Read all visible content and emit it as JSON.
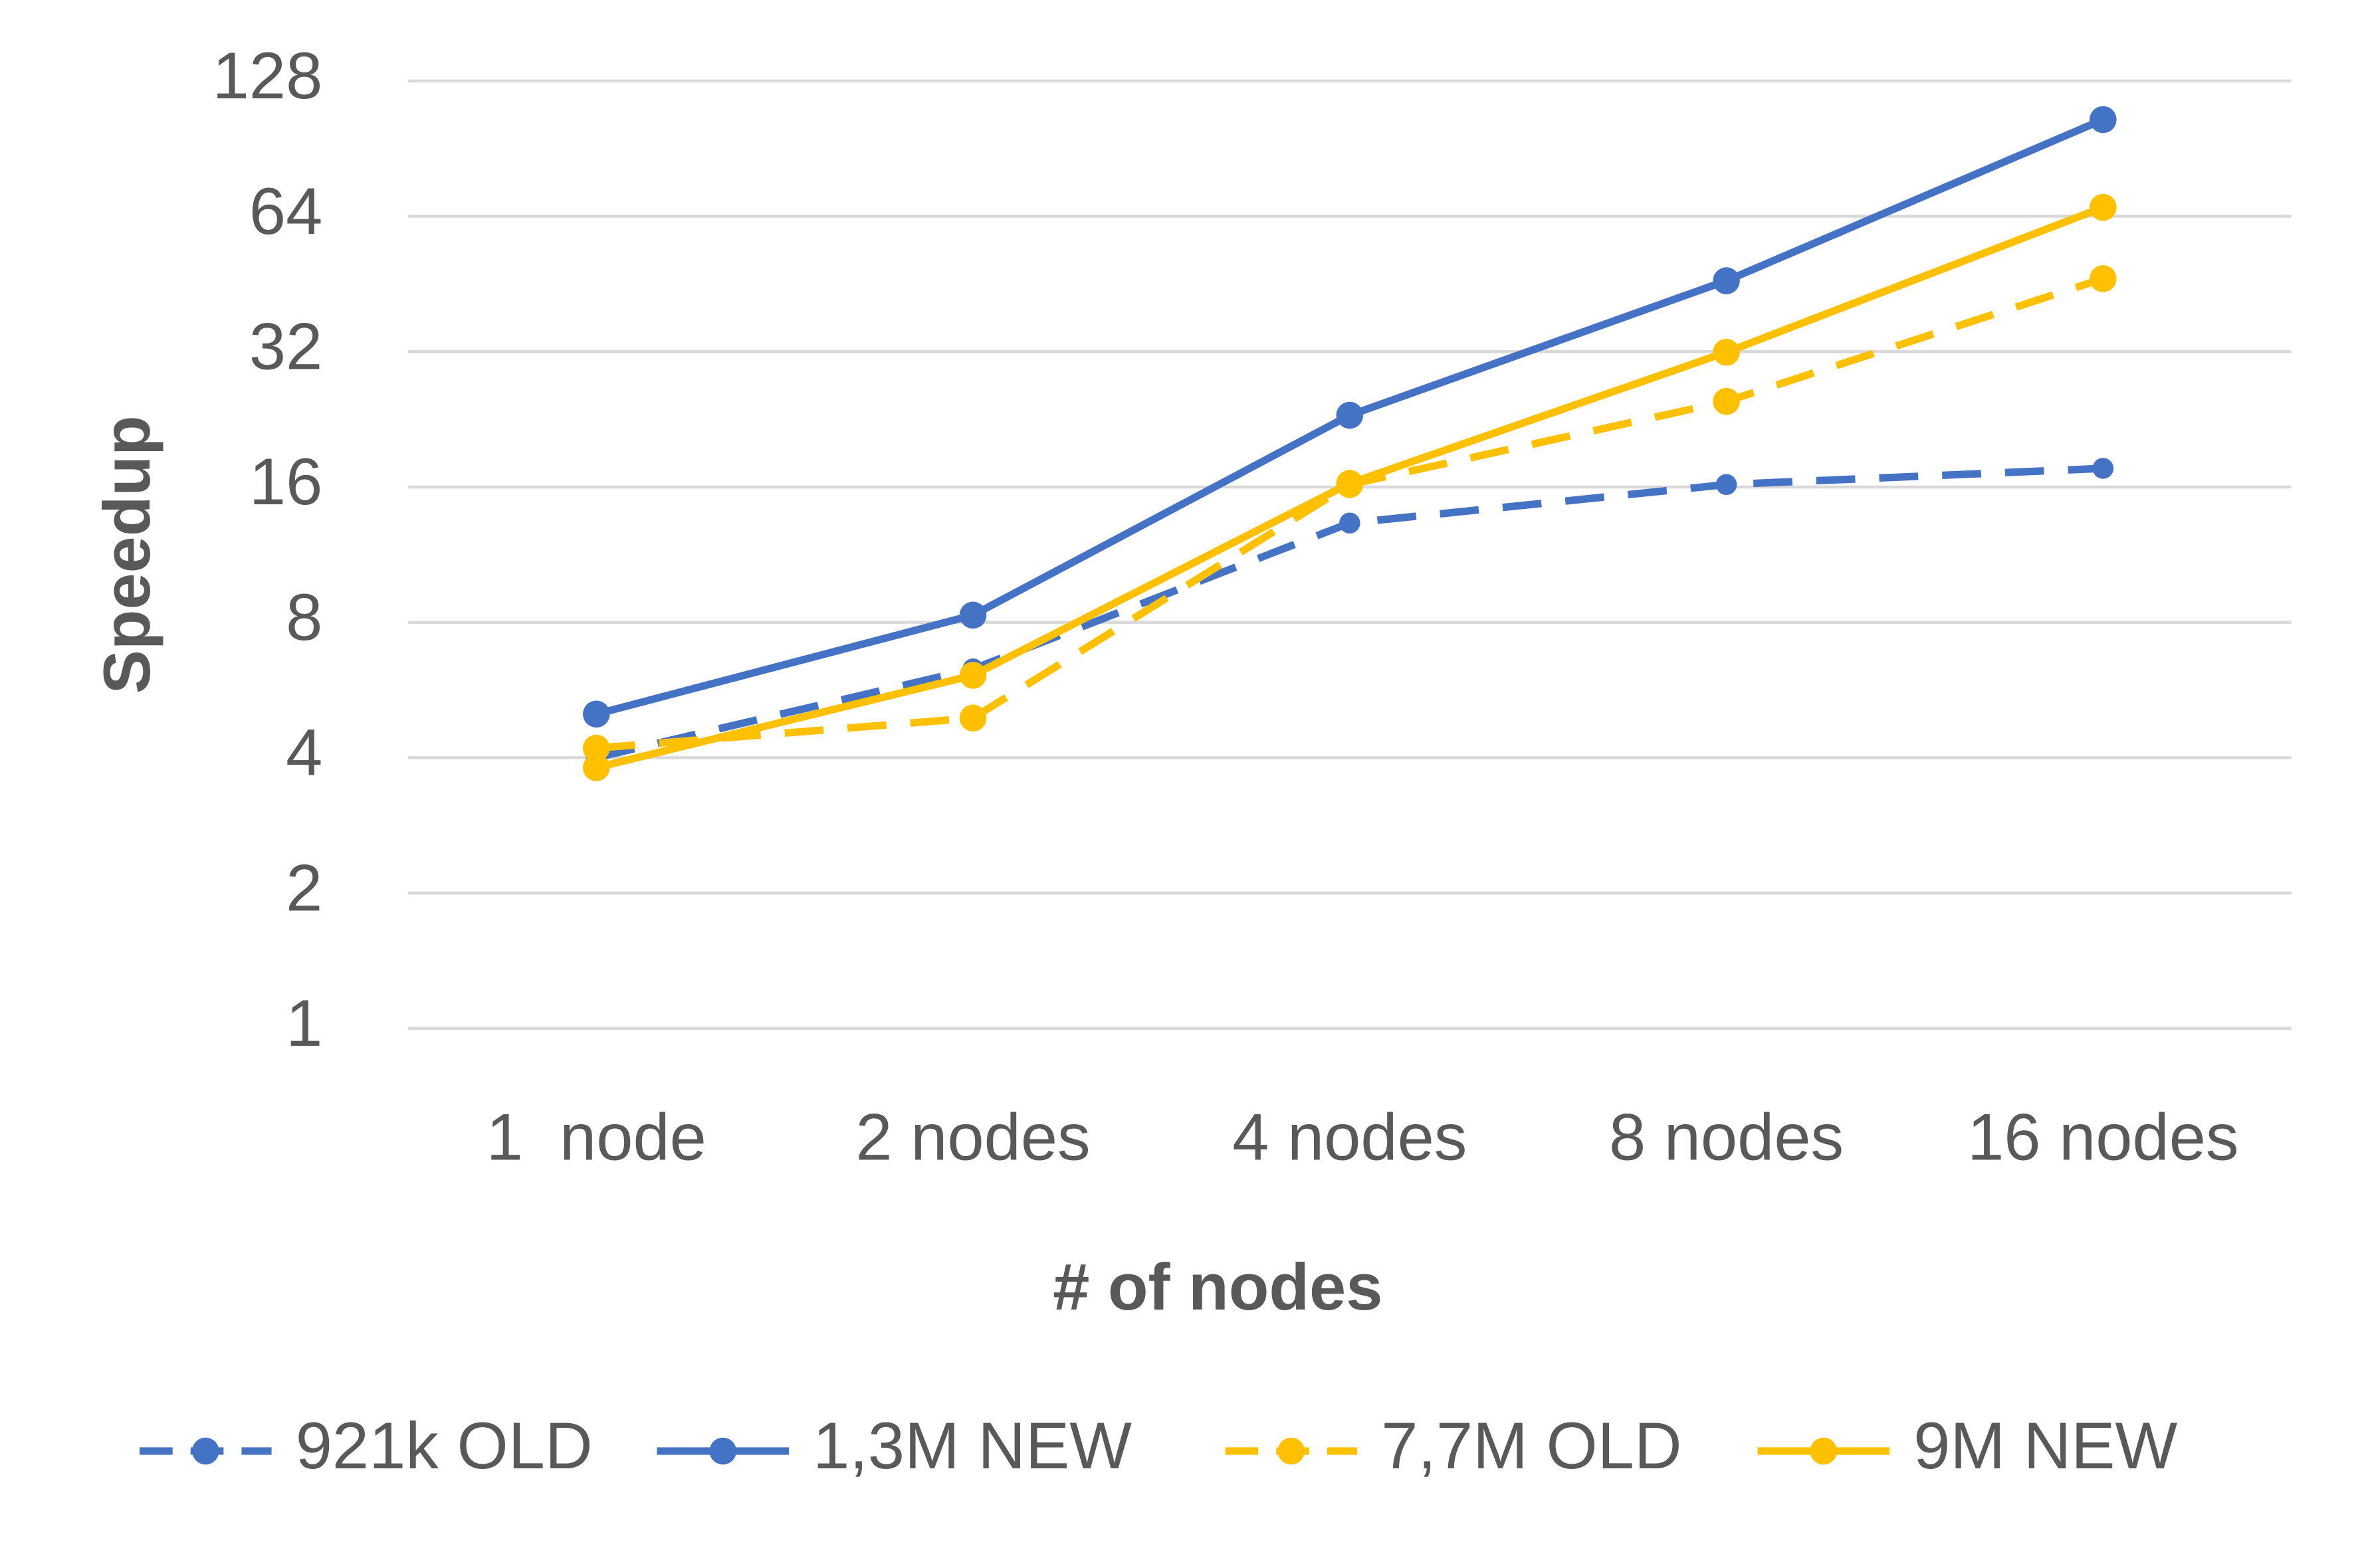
{
  "chart_data": {
    "type": "line",
    "y_label": "Speedup",
    "x_label": "# of nodes",
    "categories": [
      "1  node",
      "2 nodes",
      "4 nodes",
      "8 nodes",
      "16 nodes"
    ],
    "y_scale": "log2",
    "ylim": [
      1,
      128
    ],
    "yticks": [
      1,
      2,
      4,
      8,
      16,
      32,
      64,
      128
    ],
    "grid": true,
    "legend": "bottom",
    "series": [
      {
        "name": "921k OLD",
        "color": "#4472c4",
        "line_style": "dashed",
        "values": [
          4.0,
          6.3,
          13.3,
          16.2,
          17.6
        ]
      },
      {
        "name": "1,3M NEW",
        "color": "#4472c4",
        "line_style": "solid",
        "values": [
          5.0,
          8.3,
          23.1,
          46,
          105
        ]
      },
      {
        "name": "7,7M OLD",
        "color": "#ffc000",
        "line_style": "dashed",
        "values": [
          4.2,
          4.9,
          16.2,
          24.8,
          46.5
        ]
      },
      {
        "name": "9M NEW",
        "color": "#ffc000",
        "line_style": "solid",
        "values": [
          3.8,
          6.1,
          16.3,
          31.9,
          67
        ]
      }
    ]
  }
}
